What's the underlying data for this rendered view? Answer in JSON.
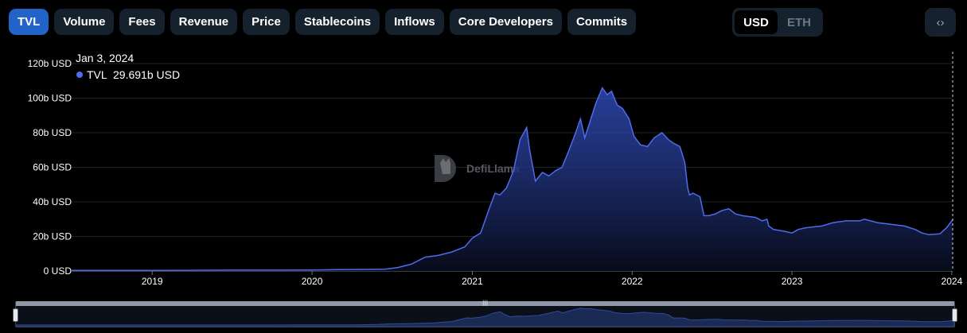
{
  "tabs": [
    {
      "label": "TVL",
      "active": true
    },
    {
      "label": "Volume"
    },
    {
      "label": "Fees"
    },
    {
      "label": "Revenue"
    },
    {
      "label": "Price"
    },
    {
      "label": "Stablecoins"
    },
    {
      "label": "Inflows"
    },
    {
      "label": "Core Developers"
    },
    {
      "label": "Commits"
    }
  ],
  "currency": {
    "options": [
      "USD",
      "ETH"
    ],
    "selected": "USD"
  },
  "embed_icon": "code-brackets-icon",
  "watermark": {
    "text": "DefiLlama",
    "icon": "llama-logo-icon"
  },
  "tooltip": {
    "date": "Jan 3, 2024",
    "series": "TVL",
    "value": "29.691b USD"
  },
  "colors": {
    "line": "#4f6bed",
    "active_tab": "#2163c7",
    "tab_bg": "#16212e"
  },
  "chart_data": {
    "type": "area",
    "title": "",
    "xlabel": "",
    "ylabel": "",
    "x_ticks": [
      "2019",
      "2020",
      "2021",
      "2022",
      "2023",
      "2024"
    ],
    "y_ticks": [
      "0 USD",
      "20b USD",
      "40b USD",
      "60b USD",
      "80b USD",
      "100b USD",
      "120b USD"
    ],
    "ylim": [
      0,
      120
    ],
    "y_unit": "b USD",
    "grid": true,
    "series": [
      {
        "name": "TVL",
        "x": [
          "2018-07-01",
          "2018-10-01",
          "2019-01-01",
          "2019-04-01",
          "2019-07-01",
          "2019-10-01",
          "2020-01-01",
          "2020-03-01",
          "2020-05-01",
          "2020-06-15",
          "2020-07-15",
          "2020-08-15",
          "2020-09-15",
          "2020-10-15",
          "2020-11-15",
          "2020-12-15",
          "2021-01-01",
          "2021-01-20",
          "2021-02-10",
          "2021-02-22",
          "2021-03-05",
          "2021-03-20",
          "2021-04-05",
          "2021-04-20",
          "2021-05-05",
          "2021-05-12",
          "2021-05-25",
          "2021-06-10",
          "2021-06-25",
          "2021-07-10",
          "2021-07-25",
          "2021-08-10",
          "2021-08-25",
          "2021-09-05",
          "2021-09-15",
          "2021-09-25",
          "2021-10-10",
          "2021-10-25",
          "2021-11-05",
          "2021-11-15",
          "2021-11-28",
          "2021-12-10",
          "2021-12-25",
          "2022-01-05",
          "2022-01-20",
          "2022-02-05",
          "2022-02-20",
          "2022-03-10",
          "2022-03-25",
          "2022-04-05",
          "2022-04-20",
          "2022-05-01",
          "2022-05-08",
          "2022-05-12",
          "2022-05-20",
          "2022-06-05",
          "2022-06-14",
          "2022-06-25",
          "2022-07-10",
          "2022-07-25",
          "2022-08-10",
          "2022-08-25",
          "2022-09-10",
          "2022-10-10",
          "2022-10-25",
          "2022-11-05",
          "2022-11-09",
          "2022-11-20",
          "2022-12-15",
          "2023-01-01",
          "2023-01-15",
          "2023-02-01",
          "2023-03-10",
          "2023-04-05",
          "2023-05-05",
          "2023-06-05",
          "2023-06-15",
          "2023-07-15",
          "2023-08-15",
          "2023-09-15",
          "2023-10-10",
          "2023-10-25",
          "2023-11-10",
          "2023-12-05",
          "2023-12-20",
          "2024-01-03"
        ],
        "values": [
          0.3,
          0.3,
          0.3,
          0.4,
          0.5,
          0.5,
          0.6,
          0.8,
          0.9,
          1.0,
          2.0,
          4.0,
          8.0,
          9.0,
          11.0,
          14.0,
          19.0,
          22.0,
          37.0,
          45.0,
          44.0,
          48.0,
          58.0,
          76.0,
          83.0,
          70.0,
          52.0,
          57.0,
          55.0,
          58.0,
          60.0,
          70.0,
          80.0,
          88.0,
          77.0,
          85.0,
          97.0,
          106.0,
          102.0,
          104.0,
          96.0,
          94.0,
          88.0,
          78.0,
          73.0,
          72.0,
          77.0,
          80.0,
          76.0,
          74.0,
          72.0,
          63.0,
          48.0,
          44.0,
          45.0,
          43.0,
          32.0,
          32.0,
          33.0,
          35.0,
          36.0,
          33.0,
          32.0,
          31.0,
          29.0,
          30.0,
          26.0,
          24.0,
          23.0,
          22.0,
          24.0,
          25.0,
          26.0,
          28.0,
          29.0,
          29.0,
          30.0,
          28.0,
          27.0,
          26.0,
          24.0,
          22.0,
          21.0,
          21.5,
          25.0,
          29.7
        ]
      }
    ]
  }
}
